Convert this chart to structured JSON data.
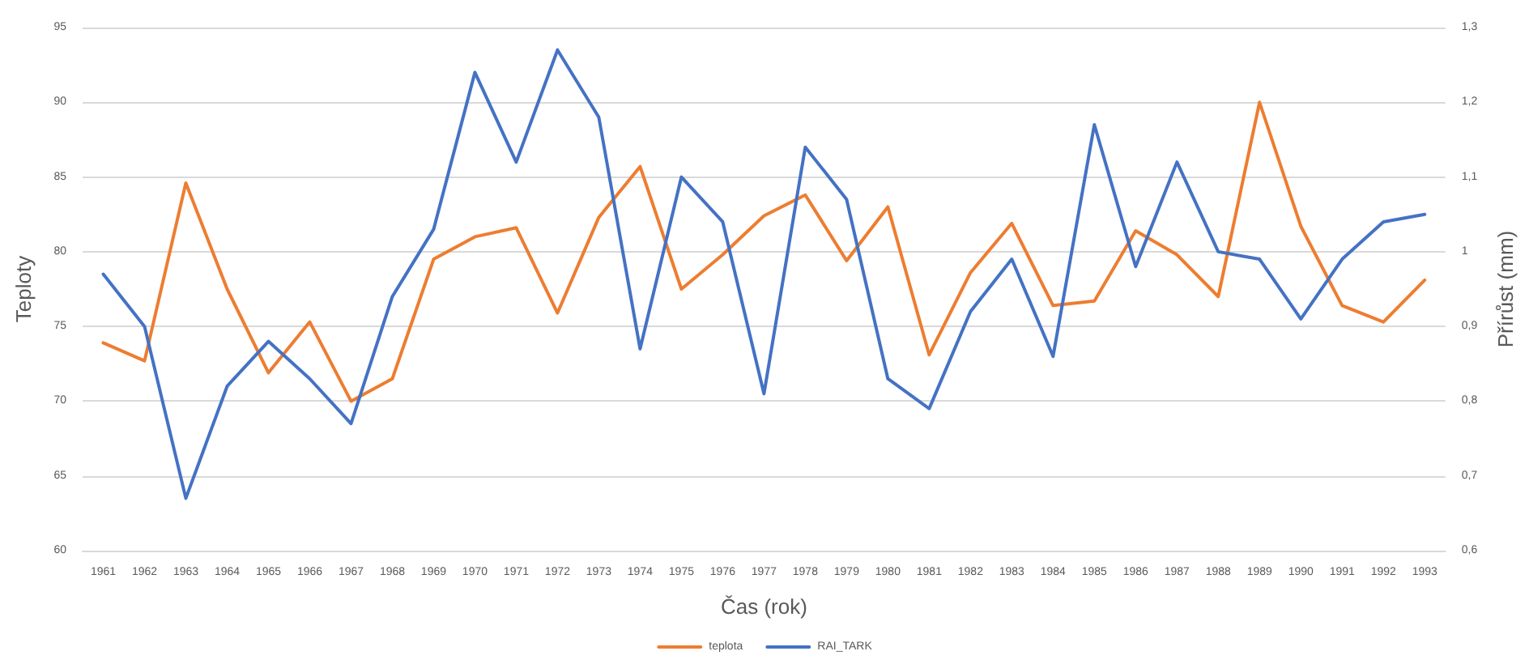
{
  "chart_data": {
    "type": "line",
    "categories": [
      "1961",
      "1962",
      "1963",
      "1964",
      "1965",
      "1966",
      "1967",
      "1968",
      "1969",
      "1970",
      "1971",
      "1972",
      "1973",
      "1974",
      "1975",
      "1976",
      "1977",
      "1978",
      "1979",
      "1980",
      "1981",
      "1982",
      "1983",
      "1984",
      "1985",
      "1986",
      "1987",
      "1988",
      "1989",
      "1990",
      "1991",
      "1992",
      "1993"
    ],
    "series": [
      {
        "name": "teplota",
        "color": "#ed7d31",
        "values": [
          73.9,
          72.7,
          84.6,
          77.5,
          71.9,
          75.3,
          70.0,
          71.5,
          79.5,
          81.0,
          81.6,
          75.9,
          82.3,
          85.7,
          77.5,
          79.8,
          82.4,
          83.8,
          79.4,
          83.0,
          73.1,
          78.6,
          81.9,
          76.4,
          76.7,
          81.4,
          79.8,
          77.0,
          90.0,
          81.7,
          76.4,
          75.3,
          78.1
        ]
      },
      {
        "name": "RAI_TARK",
        "color": "#4472c4",
        "axis": "y2",
        "values": [
          0.97,
          0.9,
          0.67,
          0.82,
          0.88,
          0.83,
          0.77,
          0.94,
          1.03,
          1.24,
          1.12,
          1.27,
          1.18,
          0.87,
          1.1,
          1.04,
          0.81,
          1.14,
          1.07,
          0.83,
          0.79,
          0.92,
          0.99,
          0.86,
          1.17,
          0.98,
          1.12,
          1.0,
          0.99,
          0.91,
          0.99,
          1.04,
          1.05
        ]
      }
    ],
    "xlabel": "Čas (rok)",
    "ylabel": "Teploty",
    "y2label": "Přírůst (mm)",
    "ylim": [
      60,
      95
    ],
    "yticks": [
      60,
      65,
      70,
      75,
      80,
      85,
      90,
      95
    ],
    "y2lim": [
      0.6,
      1.3
    ],
    "y2ticks": [
      {
        "value": 0.6,
        "label": "0,6"
      },
      {
        "value": 0.7,
        "label": "0,7"
      },
      {
        "value": 0.8,
        "label": "0,8"
      },
      {
        "value": 0.9,
        "label": "0,9"
      },
      1,
      {
        "value": 1.1,
        "label": "1,1"
      },
      {
        "value": 1.2,
        "label": "1,2"
      },
      {
        "value": 1.3,
        "label": "1,3"
      }
    ],
    "grid": "y",
    "legend": "bottom",
    "marker": "none",
    "line_style": "solid"
  }
}
